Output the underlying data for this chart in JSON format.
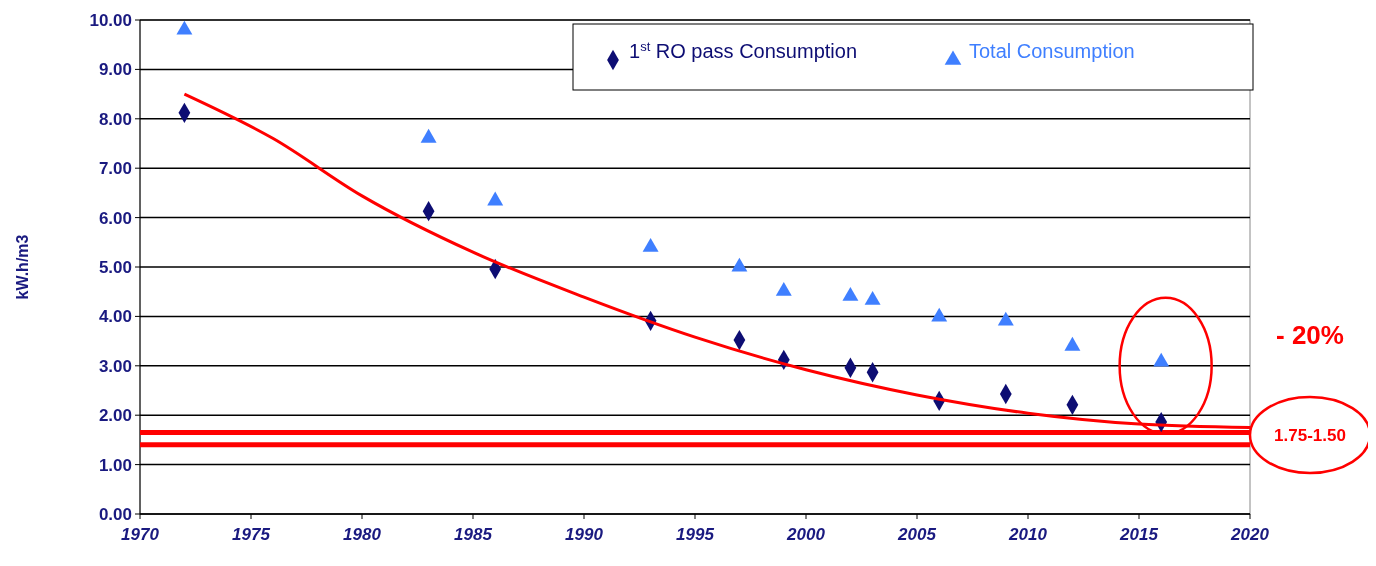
{
  "chart_data": {
    "type": "scatter",
    "ylabel": "kW.h/m3",
    "xlim": [
      1970,
      2020
    ],
    "xticks": [
      1970,
      1975,
      1980,
      1985,
      1990,
      1995,
      2000,
      2005,
      2010,
      2015,
      2020
    ],
    "ylim": [
      0,
      10
    ],
    "yticks": [
      {
        "value": 0,
        "label": "0.00"
      },
      {
        "value": 1,
        "label": "1.00"
      },
      {
        "value": 2,
        "label": "2.00"
      },
      {
        "value": 3,
        "label": "3.00"
      },
      {
        "value": 4,
        "label": "4.00"
      },
      {
        "value": 5,
        "label": "5.00"
      },
      {
        "value": 6,
        "label": "6.00"
      },
      {
        "value": 7,
        "label": "7.00"
      },
      {
        "value": 8,
        "label": "8.00"
      },
      {
        "value": 9,
        "label": "9.00"
      },
      {
        "value": 10,
        "label": "10.00"
      }
    ],
    "grid": "y",
    "legend": "top right",
    "x": [
      1972,
      1983,
      1986,
      1993,
      1997,
      1999,
      2002,
      2003,
      2006,
      2009,
      2012,
      2016
    ],
    "series": [
      {
        "name": "1$^{st}$ RO pass Consumption",
        "color": "#0d0d73",
        "marker": "diamond",
        "values": [
          8.12,
          6.13,
          4.96,
          3.91,
          3.52,
          3.12,
          2.96,
          2.87,
          2.29,
          2.43,
          2.21,
          1.86
        ]
      },
      {
        "name": "Total Consumption",
        "color": "#3f7fff",
        "marker": "triangle",
        "values": [
          9.8,
          7.61,
          6.34,
          5.4,
          5.0,
          4.51,
          4.41,
          4.33,
          3.99,
          3.91,
          3.4,
          3.08
        ]
      },
      {
        "type": "line",
        "color": "#ff0000",
        "marker": "none",
        "line_style": "solid",
        "x": [
          1972,
          1976,
          1980,
          1985,
          1990,
          1995,
          2000,
          2005,
          2010,
          2015,
          2020
        ],
        "values": [
          8.5,
          7.6,
          6.44,
          5.3,
          4.39,
          3.58,
          2.92,
          2.41,
          2.04,
          1.82,
          1.75
        ]
      }
    ],
    "ref_lines": [
      {
        "axis": "y",
        "value": 1.65,
        "color": "#ff0000"
      },
      {
        "axis": "y",
        "value": 1.4,
        "color": "#ff0000"
      }
    ],
    "annotations": [
      "- 20%",
      "1.75-1.50"
    ]
  }
}
